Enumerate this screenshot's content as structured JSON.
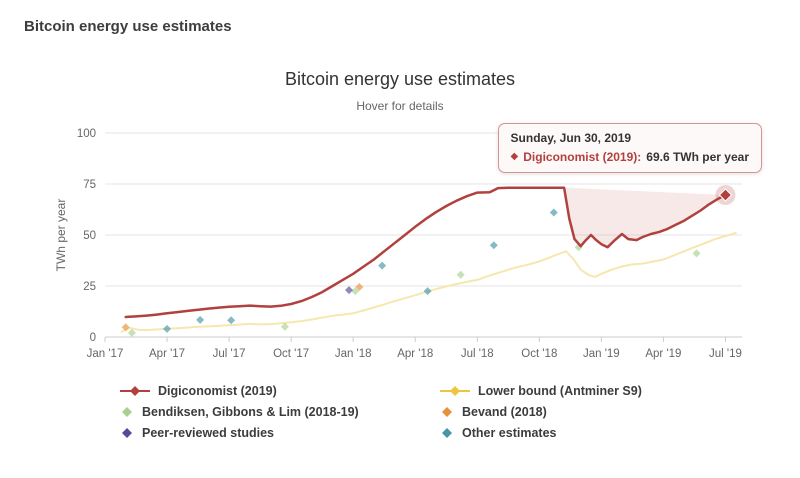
{
  "page": {
    "title": "Bitcoin energy use estimates"
  },
  "chart": {
    "title": "Bitcoin energy use estimates",
    "subtitle": "Hover for details",
    "tooltip": {
      "date": "Sunday, Jun 30, 2019",
      "series_label": "Digiconomist (2019):",
      "value": "69.6 TWh per year",
      "series_color": "#b0413e"
    },
    "legend": [
      {
        "label": "Digiconomist (2019)",
        "color": "#b0413e",
        "marker": "line"
      },
      {
        "label": "Lower bound (Antminer S9)",
        "color": "#eec53f",
        "marker": "line"
      },
      {
        "label": "Bendiksen, Gibbons & Lim (2018-19)",
        "color": "#a8d18d",
        "marker": "diamond"
      },
      {
        "label": "Bevand (2018)",
        "color": "#e9903a",
        "marker": "diamond"
      },
      {
        "label": "Peer-reviewed studies",
        "color": "#544a9a",
        "marker": "diamond"
      },
      {
        "label": "Other estimates",
        "color": "#4596a8",
        "marker": "diamond"
      }
    ]
  },
  "chart_data": {
    "type": "line",
    "title": "Bitcoin energy use estimates",
    "subtitle": "Hover for details",
    "ylabel": "TWh per year",
    "x_unit": "months since Jan 2017",
    "x_range": [
      0,
      30.8
    ],
    "ylim": [
      0,
      100
    ],
    "y_ticks": [
      0,
      25,
      50,
      75,
      100
    ],
    "x_ticks": [
      {
        "m": 0,
        "label": "Jan '17"
      },
      {
        "m": 3,
        "label": "Apr '17"
      },
      {
        "m": 6,
        "label": "Jul '17"
      },
      {
        "m": 9,
        "label": "Oct '17"
      },
      {
        "m": 12,
        "label": "Jan '18"
      },
      {
        "m": 15,
        "label": "Apr '18"
      },
      {
        "m": 18,
        "label": "Jul '18"
      },
      {
        "m": 21,
        "label": "Oct '18"
      },
      {
        "m": 24,
        "label": "Jan '19"
      },
      {
        "m": 27,
        "label": "Apr '19"
      },
      {
        "m": 30,
        "label": "Jul '19"
      }
    ],
    "series": [
      {
        "name": "Lower bound (Antminer S9)",
        "type": "line",
        "color": "#f5e7ae",
        "width": 2,
        "points": [
          [
            0.8,
            2.6
          ],
          [
            1.2,
            4.4
          ],
          [
            1.6,
            3.6
          ],
          [
            2,
            3.4
          ],
          [
            2.5,
            3.7
          ],
          [
            3,
            4
          ],
          [
            3.5,
            4.3
          ],
          [
            4,
            4.6
          ],
          [
            4.5,
            5
          ],
          [
            5,
            5.2
          ],
          [
            5.5,
            5.5
          ],
          [
            6,
            5.8
          ],
          [
            6.5,
            6.1
          ],
          [
            7,
            6.4
          ],
          [
            7.5,
            6.2
          ],
          [
            8,
            6.3
          ],
          [
            8.5,
            6.7
          ],
          [
            9,
            7.2
          ],
          [
            9.5,
            7.8
          ],
          [
            10,
            8.6
          ],
          [
            10.5,
            9.5
          ],
          [
            11,
            10.4
          ],
          [
            11.5,
            11
          ],
          [
            12,
            11.6
          ],
          [
            12.5,
            13
          ],
          [
            13,
            14.5
          ],
          [
            13.5,
            16
          ],
          [
            14,
            17.6
          ],
          [
            14.5,
            19
          ],
          [
            15,
            20.5
          ],
          [
            15.5,
            22
          ],
          [
            16,
            23.5
          ],
          [
            16.5,
            24.8
          ],
          [
            17,
            26
          ],
          [
            17.5,
            27
          ],
          [
            18,
            28
          ],
          [
            18.5,
            29.8
          ],
          [
            19,
            31.4
          ],
          [
            19.5,
            33
          ],
          [
            20,
            34.4
          ],
          [
            20.5,
            35.6
          ],
          [
            21,
            37
          ],
          [
            21.5,
            39
          ],
          [
            22,
            41
          ],
          [
            22.3,
            42
          ],
          [
            22.7,
            37.5
          ],
          [
            23,
            33
          ],
          [
            23.4,
            30.3
          ],
          [
            23.7,
            29.5
          ],
          [
            24,
            31
          ],
          [
            24.5,
            33
          ],
          [
            25,
            34.6
          ],
          [
            25.5,
            35.6
          ],
          [
            26,
            36
          ],
          [
            26.5,
            37
          ],
          [
            27,
            38
          ],
          [
            27.5,
            40
          ],
          [
            28,
            42
          ],
          [
            28.5,
            44
          ],
          [
            29,
            46
          ],
          [
            29.5,
            48
          ],
          [
            30,
            49.5
          ],
          [
            30.5,
            51
          ]
        ]
      },
      {
        "name": "Bendiksen, Gibbons & Lim (2018-19)",
        "type": "scatter",
        "color": "#a8d18d",
        "points": [
          [
            1.3,
            2
          ],
          [
            8.7,
            5
          ],
          [
            12.1,
            22.5
          ],
          [
            17.2,
            30.5
          ],
          [
            22.9,
            44
          ],
          [
            28.6,
            41
          ]
        ]
      },
      {
        "name": "Bevand (2018)",
        "type": "scatter",
        "color": "#e9903a",
        "points": [
          [
            1,
            4.8
          ],
          [
            12.3,
            24.5
          ]
        ]
      },
      {
        "name": "Peer-reviewed studies",
        "type": "scatter",
        "color": "#544a9a",
        "points": [
          [
            11.8,
            23
          ]
        ]
      },
      {
        "name": "Other estimates",
        "type": "scatter",
        "color": "#4596a8",
        "points": [
          [
            3,
            4
          ],
          [
            4.6,
            8.4
          ],
          [
            6.1,
            8.2
          ],
          [
            13.4,
            35
          ],
          [
            15.6,
            22.5
          ],
          [
            18.8,
            45
          ],
          [
            21.7,
            61
          ]
        ]
      },
      {
        "name": "Digiconomist (2019)",
        "type": "line",
        "color": "#b0413e",
        "width": 2.5,
        "points": [
          [
            1,
            9.8
          ],
          [
            1.5,
            10.1
          ],
          [
            2,
            10.5
          ],
          [
            2.5,
            11
          ],
          [
            3,
            11.6
          ],
          [
            3.5,
            12.2
          ],
          [
            4,
            12.8
          ],
          [
            4.5,
            13.4
          ],
          [
            5,
            13.9
          ],
          [
            5.5,
            14.4
          ],
          [
            6,
            14.8
          ],
          [
            6.5,
            15.1
          ],
          [
            7,
            15.4
          ],
          [
            7.5,
            15.1
          ],
          [
            8,
            14.9
          ],
          [
            8.5,
            15.3
          ],
          [
            9,
            16.2
          ],
          [
            9.5,
            17.6
          ],
          [
            10,
            19.6
          ],
          [
            10.5,
            22
          ],
          [
            11,
            25
          ],
          [
            11.5,
            28
          ],
          [
            12,
            31
          ],
          [
            12.5,
            34.5
          ],
          [
            13,
            38
          ],
          [
            13.5,
            42
          ],
          [
            14,
            46
          ],
          [
            14.5,
            50
          ],
          [
            15,
            54
          ],
          [
            15.5,
            57.8
          ],
          [
            16,
            61.2
          ],
          [
            16.5,
            64.2
          ],
          [
            17,
            66.8
          ],
          [
            17.5,
            69
          ],
          [
            18,
            70.8
          ],
          [
            18.6,
            71
          ],
          [
            19,
            73
          ],
          [
            19.5,
            73.2
          ],
          [
            20.5,
            73.2
          ],
          [
            21.5,
            73.2
          ],
          [
            22.2,
            73.2
          ],
          [
            22.45,
            58
          ],
          [
            22.7,
            48
          ],
          [
            23,
            44.5
          ],
          [
            23.25,
            47.5
          ],
          [
            23.5,
            50
          ],
          [
            23.75,
            47.5
          ],
          [
            24,
            45.5
          ],
          [
            24.3,
            44
          ],
          [
            24.6,
            47
          ],
          [
            25,
            50.5
          ],
          [
            25.3,
            48
          ],
          [
            25.7,
            47.5
          ],
          [
            26,
            49
          ],
          [
            26.4,
            50.5
          ],
          [
            26.8,
            51.5
          ],
          [
            27.2,
            53
          ],
          [
            27.6,
            55
          ],
          [
            28,
            57
          ],
          [
            28.4,
            59.5
          ],
          [
            28.8,
            62
          ],
          [
            29.2,
            65
          ],
          [
            29.6,
            67.5
          ],
          [
            30,
            69.6
          ]
        ]
      }
    ],
    "highlight_region": {
      "series": "Digiconomist (2019)",
      "from_x": 22.2,
      "color": "rgba(199,98,93,0.14)"
    },
    "highlight_point": {
      "series": "Digiconomist (2019)",
      "x": 30,
      "y": 69.6,
      "color": "#b0413e",
      "halo_color": "rgba(176,65,62,0.22)"
    }
  }
}
